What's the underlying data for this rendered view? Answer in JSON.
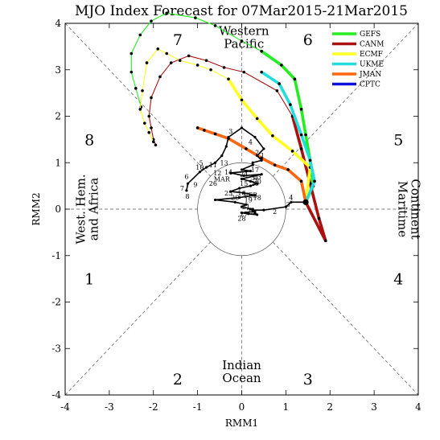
{
  "chart_data": {
    "type": "line",
    "title": "MJO Index Forecast for 07Mar2015-21Mar2015",
    "xlabel": "RMM1",
    "ylabel": "RMM2",
    "xlim": [
      -4,
      4
    ],
    "ylim": [
      -4,
      4
    ],
    "xticks": [
      "-4",
      "-3",
      "-2",
      "-1",
      "0",
      "1",
      "2",
      "3",
      "4"
    ],
    "yticks": [
      "-4",
      "-3",
      "-2",
      "-1",
      "0",
      "1",
      "2",
      "3",
      "4"
    ],
    "phases": [
      {
        "label": "1",
        "x": -3.45,
        "y": -1.5
      },
      {
        "label": "2",
        "x": -1.45,
        "y": -3.65
      },
      {
        "label": "3",
        "x": 1.5,
        "y": -3.65
      },
      {
        "label": "4",
        "x": 3.55,
        "y": -1.5
      },
      {
        "label": "5",
        "x": 3.55,
        "y": 1.5
      },
      {
        "label": "6",
        "x": 1.5,
        "y": 3.65
      },
      {
        "label": "7",
        "x": -1.45,
        "y": 3.65
      },
      {
        "label": "8",
        "x": -3.45,
        "y": 1.5
      }
    ],
    "regions": {
      "top": [
        "Western",
        "Pacific"
      ],
      "bottom": [
        "Indian",
        "Ocean"
      ],
      "left": [
        "West. Hem.",
        "and Africa"
      ],
      "right": [
        "Maritime",
        "Continent"
      ]
    },
    "legend_position": "top-right",
    "series": [
      {
        "name": "GEFS",
        "color": "#22ee22",
        "width": 1.1,
        "x": [
          1.45,
          1.62,
          1.55,
          1.45,
          1.35,
          1.2,
          0.9,
          0.45,
          0.0,
          -0.6,
          -1.05,
          -1.7,
          -2.05,
          -2.3,
          -2.5,
          -2.5,
          -2.4,
          -2.28
        ],
        "y": [
          0.15,
          0.5,
          1.05,
          1.6,
          2.15,
          2.8,
          3.1,
          3.4,
          3.62,
          3.95,
          4.12,
          4.22,
          4.05,
          3.75,
          3.35,
          2.95,
          2.6,
          2.2
        ]
      },
      {
        "name": "GEFS",
        "color": "#22ee22",
        "width": 3.6,
        "x": [
          1.45,
          1.62,
          1.55,
          1.45,
          1.35,
          1.2,
          0.9,
          0.45
        ],
        "y": [
          0.15,
          0.5,
          1.05,
          1.6,
          2.15,
          2.8,
          3.1,
          3.4
        ]
      },
      {
        "name": "CANM",
        "color": "#aa1111",
        "width": 1.1,
        "x": [
          1.45,
          1.9,
          1.75,
          1.55,
          1.35,
          1.15,
          0.8,
          0.05,
          -0.4,
          -0.8,
          -1.2,
          -1.6,
          -1.85,
          -2.05,
          -2.1,
          -2.05,
          -2.0,
          -1.95
        ],
        "y": [
          0.15,
          -0.68,
          -0.2,
          0.55,
          1.3,
          2.0,
          2.55,
          2.95,
          3.05,
          3.2,
          3.3,
          3.15,
          2.85,
          2.4,
          2.0,
          1.75,
          1.5,
          1.38
        ]
      },
      {
        "name": "CANM",
        "color": "#aa1111",
        "width": 3.6,
        "x": [
          1.45,
          1.9,
          1.75,
          1.55,
          1.35,
          1.15
        ],
        "y": [
          0.15,
          -0.68,
          -0.2,
          0.55,
          1.3,
          2.0
        ]
      },
      {
        "name": "ECMF",
        "color": "#ffff22",
        "width": 1.1,
        "x": [
          1.45,
          1.55,
          1.15,
          0.7,
          0.35,
          0.0,
          -0.3,
          -0.7,
          -1.0,
          -1.4,
          -1.7,
          -1.9,
          -2.15,
          -2.25,
          -2.3,
          -2.2,
          -2.1,
          -2.0
        ],
        "y": [
          0.15,
          0.9,
          1.25,
          1.58,
          1.95,
          2.35,
          2.8,
          3.0,
          3.1,
          3.2,
          3.35,
          3.45,
          3.15,
          2.55,
          2.15,
          1.85,
          1.65,
          1.45
        ]
      },
      {
        "name": "ECMF",
        "color": "#ffff22",
        "width": 3.6,
        "x": [
          1.45,
          1.55,
          1.15,
          0.7,
          0.35,
          0.0,
          -0.3
        ],
        "y": [
          0.15,
          0.9,
          1.25,
          1.58,
          1.95,
          2.35,
          2.8
        ]
      },
      {
        "name": "UKME",
        "color": "#22dddd",
        "width": 3.6,
        "x": [
          1.45,
          1.65,
          1.55,
          1.35,
          1.1,
          0.85,
          0.45
        ],
        "y": [
          0.15,
          0.6,
          1.05,
          1.6,
          2.25,
          2.7,
          2.95
        ]
      },
      {
        "name": "JMAN",
        "color": "#ff6611",
        "width": 3.6,
        "x": [
          1.45,
          1.35,
          1.05,
          0.75,
          0.45,
          0.1,
          -0.3,
          -0.6,
          -0.85,
          -1.0
        ],
        "y": [
          0.15,
          0.6,
          0.85,
          0.95,
          1.1,
          1.3,
          1.52,
          1.62,
          1.7,
          1.75
        ]
      }
    ],
    "observed": {
      "color": "#000000",
      "x": [
        -1.25,
        -1.22,
        -0.95,
        -0.8,
        -0.6,
        -0.45,
        -0.35,
        -0.3,
        0.0,
        0.3,
        0.5,
        0.35,
        0.45,
        0.25,
        0.25,
        0.0,
        0.2,
        -0.25,
        0.05,
        0.45,
        0.0,
        0.2,
        0.35,
        0.2,
        -0.05,
        -0.25,
        0.05,
        0.3,
        -0.05,
        -0.6,
        -0.15,
        0.1,
        0.0,
        0.25,
        0.3,
        0.0,
        0.15,
        0.35,
        0.3,
        0.2,
        0.25,
        0.5,
        1.0,
        1.12,
        1.45
      ],
      "y": [
        0.4,
        0.55,
        0.8,
        0.9,
        1.0,
        1.15,
        1.35,
        1.55,
        1.75,
        1.55,
        1.3,
        1.15,
        1.05,
        1.0,
        0.95,
        0.85,
        0.82,
        0.78,
        0.72,
        0.75,
        0.65,
        0.6,
        0.55,
        0.5,
        0.45,
        0.38,
        0.35,
        0.3,
        0.25,
        0.2,
        0.15,
        0.1,
        0.05,
        0.0,
        -0.05,
        -0.08,
        -0.1,
        -0.12,
        -0.08,
        0.0,
        -0.02,
        -0.02,
        0.05,
        0.15,
        0.15
      ],
      "labels": [
        {
          "text": "7",
          "x": -1.35,
          "y": 0.45
        },
        {
          "text": "8",
          "x": -1.23,
          "y": 0.28
        },
        {
          "text": "6",
          "x": -1.25,
          "y": 0.7
        },
        {
          "text": "9",
          "x": -1.05,
          "y": 0.53
        },
        {
          "text": "5",
          "x": -0.92,
          "y": 1.0
        },
        {
          "text": "4",
          "x": 0.2,
          "y": 1.45
        },
        {
          "text": "3",
          "x": -0.25,
          "y": 1.68
        },
        {
          "text": "2",
          "x": 0.35,
          "y": 1.22
        },
        {
          "text": "1",
          "x": 0.47,
          "y": 1.15
        },
        {
          "text": "10",
          "x": -0.95,
          "y": 0.9
        },
        {
          "text": "11",
          "x": -0.65,
          "y": 0.95
        },
        {
          "text": "12",
          "x": -0.55,
          "y": 0.78
        },
        {
          "text": "13",
          "x": -0.4,
          "y": 1.0
        },
        {
          "text": "14",
          "x": -0.3,
          "y": 0.8
        },
        {
          "text": "15",
          "x": 0.05,
          "y": 0.55
        },
        {
          "text": "16",
          "x": 0.0,
          "y": 0.35
        },
        {
          "text": "17",
          "x": 0.3,
          "y": 0.85
        },
        {
          "text": "18",
          "x": 0.35,
          "y": 0.25
        },
        {
          "text": "19",
          "x": 0.15,
          "y": 0.2
        },
        {
          "text": "20",
          "x": -0.15,
          "y": 0.25
        },
        {
          "text": "21",
          "x": 0.1,
          "y": 0.05
        },
        {
          "text": "22",
          "x": 0.2,
          "y": -0.05
        },
        {
          "text": "23",
          "x": 0.35,
          "y": 0.7
        },
        {
          "text": "24",
          "x": 0.05,
          "y": 0.75
        },
        {
          "text": "25",
          "x": -0.3,
          "y": 0.35
        },
        {
          "text": "26",
          "x": -0.65,
          "y": 0.55
        },
        {
          "text": "27",
          "x": 0.05,
          "y": -0.1
        },
        {
          "text": "28",
          "x": 0.0,
          "y": -0.2
        },
        {
          "text": "29",
          "x": 0.3,
          "y": 0.55
        },
        {
          "text": "30",
          "x": 0.35,
          "y": 0.6
        },
        {
          "text": "31",
          "x": 0.3,
          "y": 0.68
        },
        {
          "text": "2",
          "x": 0.75,
          "y": -0.05
        },
        {
          "text": "3",
          "x": 1.05,
          "y": 0.1
        },
        {
          "text": "4",
          "x": 1.12,
          "y": 0.25
        },
        {
          "text": "FEB",
          "x": 0.2,
          "y": 0.3
        },
        {
          "text": "MAR",
          "x": -0.45,
          "y": 0.65
        }
      ]
    }
  }
}
